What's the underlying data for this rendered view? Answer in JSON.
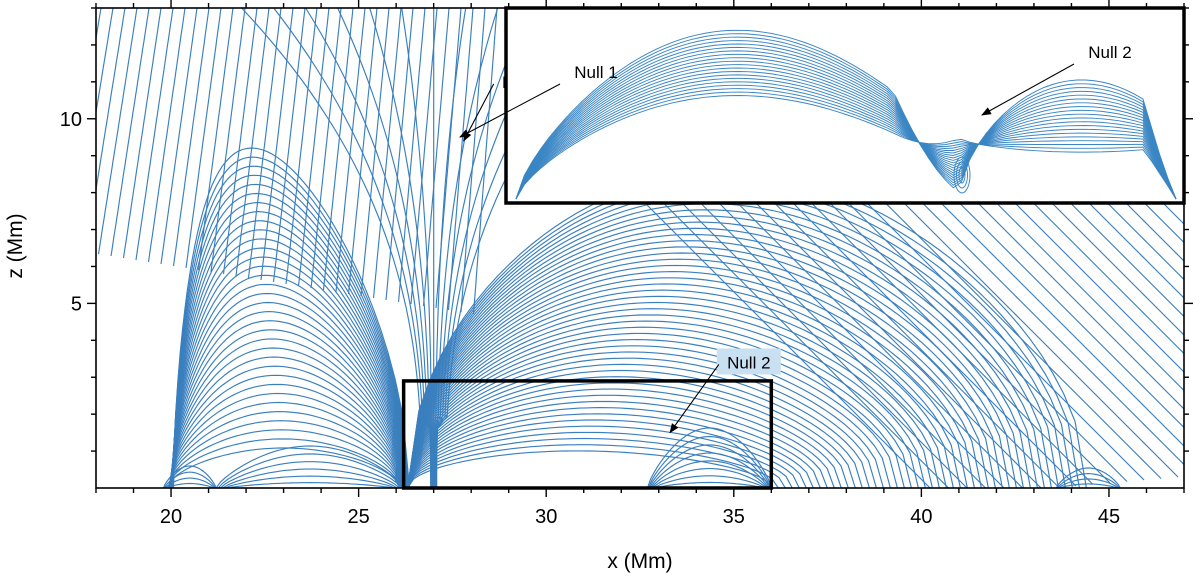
{
  "chart_data": {
    "type": "line",
    "description_source": "magnetic field-line plot (streamlines) in the x–z plane",
    "xlabel": "x (Mm)",
    "ylabel": "z (Mm)",
    "xlim": [
      18,
      47
    ],
    "ylim": [
      0,
      13
    ],
    "x_ticks": [
      20,
      25,
      30,
      35,
      40,
      45
    ],
    "y_ticks": [
      5,
      10
    ],
    "x_minor_step": 1,
    "y_minor_step": 1,
    "line_color": "#3a7fbe",
    "grid": false,
    "footpoints_x": [
      19.8,
      21.2,
      26.2,
      32.7,
      36.0,
      43.6,
      45.3
    ],
    "separatrix_x": 27.0,
    "zoom_box": {
      "x": [
        26.2,
        36.0
      ],
      "z": [
        0,
        2.9
      ]
    },
    "annotations": [
      {
        "text": "Null 1",
        "label_at": [
          29.4,
          11.0
        ],
        "arrow_to": [
          27.8,
          9.4
        ]
      },
      {
        "text": "Null 2",
        "label_at": [
          35.4,
          3.4
        ],
        "arrow_to": [
          33.3,
          1.5
        ]
      }
    ],
    "inset": {
      "description": "zoom of the boxed region",
      "annotations": [
        {
          "text": "Null 1",
          "label_at": [
            29.8,
            10.9
          ],
          "arrow_to": [
            29.0,
            10.2
          ]
        },
        {
          "text": "Null 2",
          "label_at": [
            44.3,
            11.6
          ],
          "arrow_to": [
            41.8,
            10.3
          ]
        }
      ]
    }
  }
}
